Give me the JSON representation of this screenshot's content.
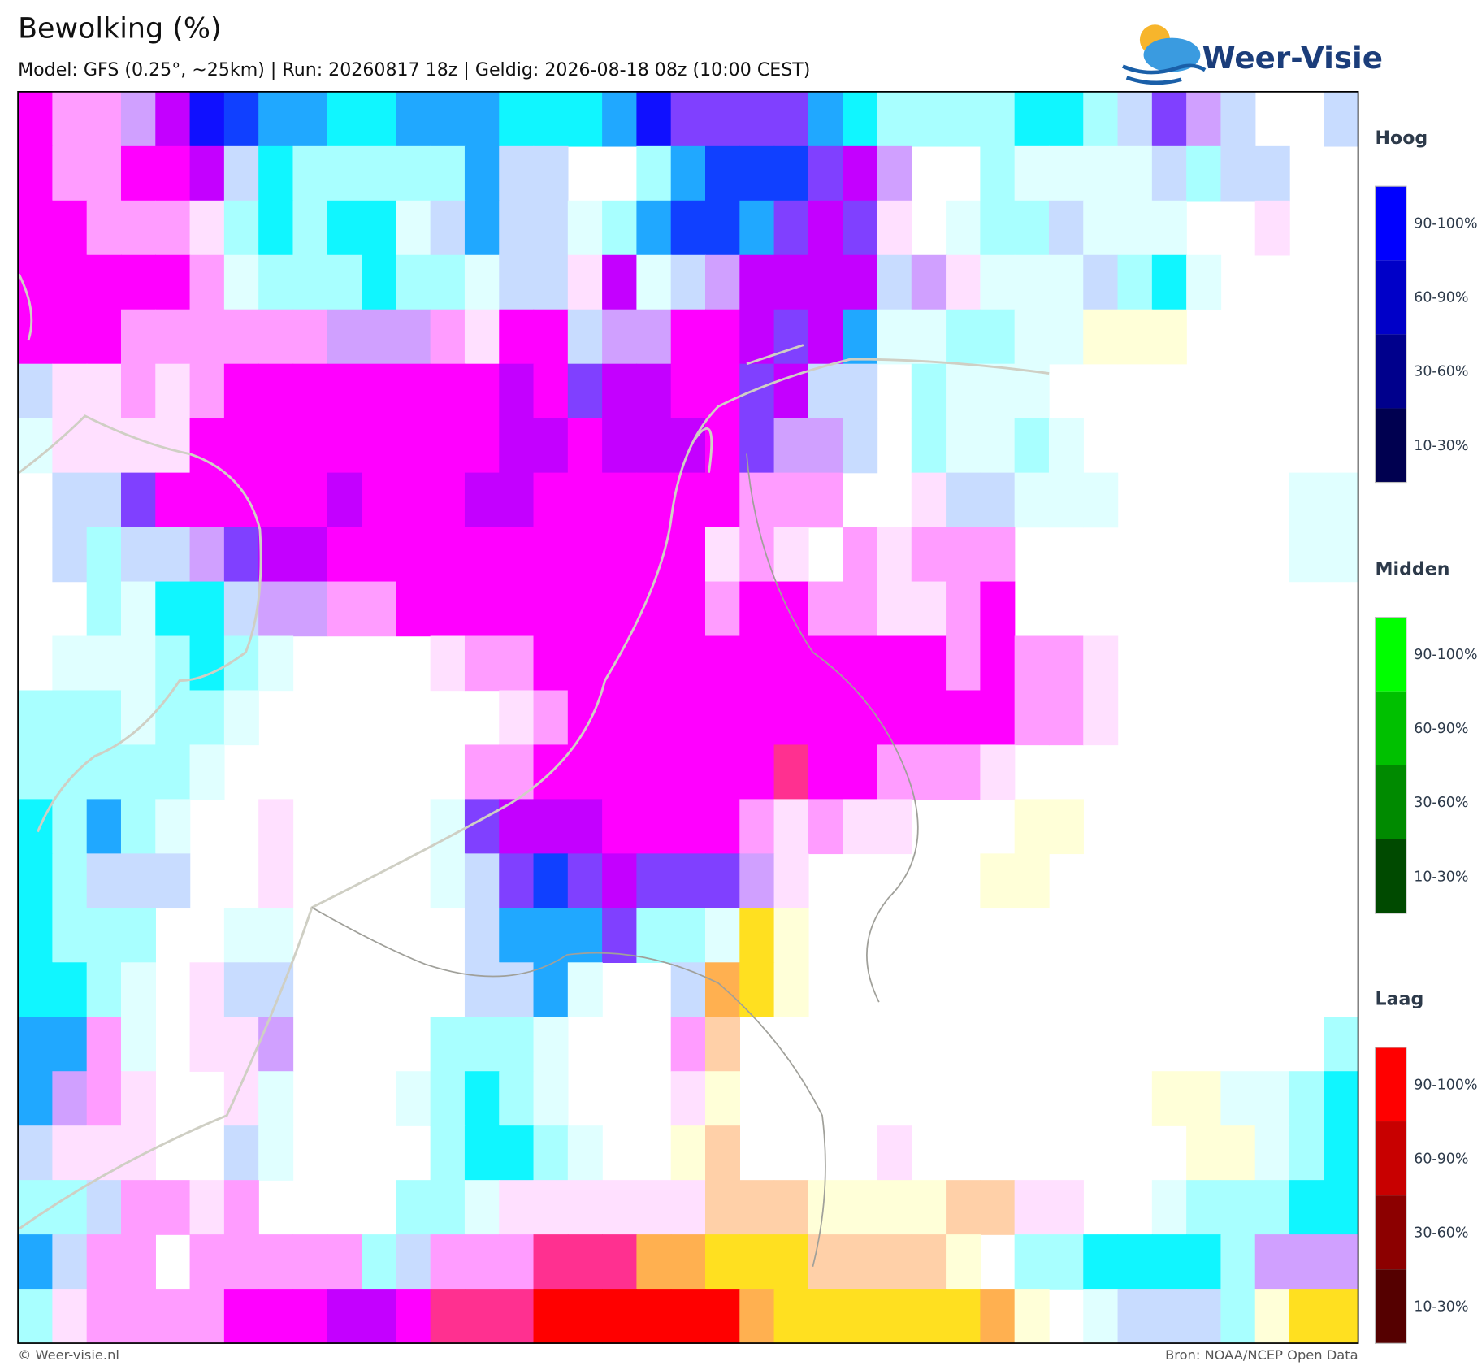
{
  "header": {
    "title": "Bewolking (%)",
    "subtitle": "Model: GFS (0.25°, ~25km)  |  Run: 20260817 18z  |  Geldig: 2026-08-18 08z (10:00 CEST)",
    "logo": "Weer-Visie"
  },
  "legend": [
    {
      "title": "Hoog",
      "labels": [
        "90-100%",
        "60-90%",
        "30-60%",
        "10-30%"
      ],
      "colors": [
        "#0000ff",
        "#0000c8",
        "#00008c",
        "#000050"
      ]
    },
    {
      "title": "Midden",
      "labels": [
        "90-100%",
        "60-90%",
        "30-60%",
        "10-30%"
      ],
      "colors": [
        "#00ff00",
        "#00c000",
        "#008a00",
        "#004a00"
      ]
    },
    {
      "title": "Laag",
      "labels": [
        "90-100%",
        "60-90%",
        "30-60%",
        "10-30%"
      ],
      "colors": [
        "#ff0000",
        "#c80000",
        "#8c0000",
        "#550000"
      ]
    }
  ],
  "footer": {
    "left": "© Weer-visie.nl",
    "right": "Bron: NOAA/NCEP Open Data"
  }
}
